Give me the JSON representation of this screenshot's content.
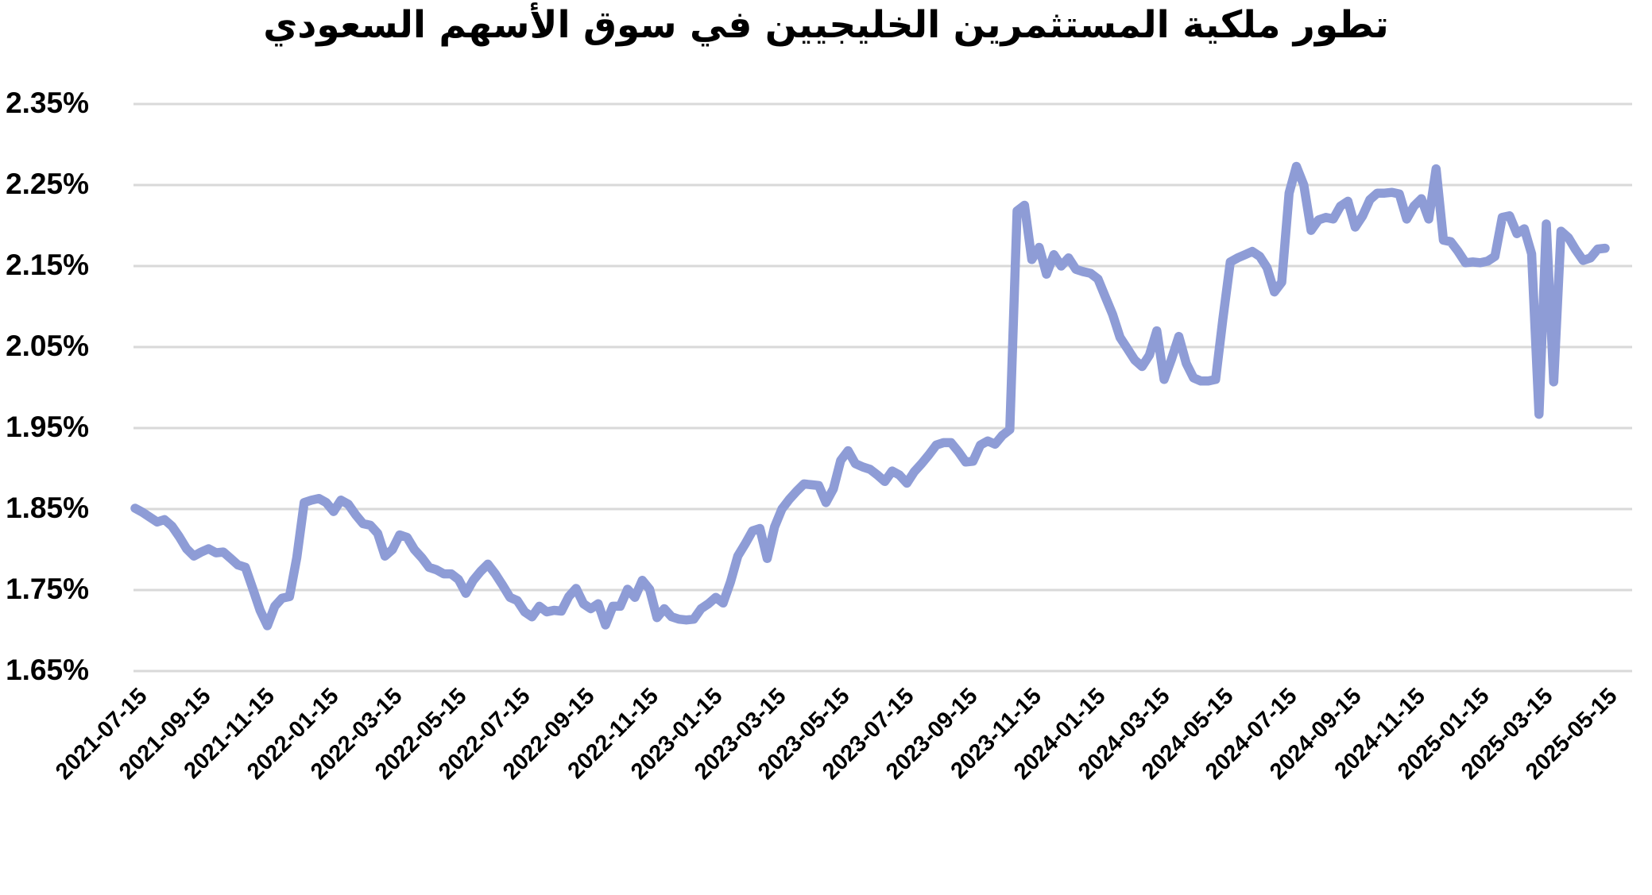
{
  "title": "تطور ملكية المستثمرين الخليجيين في سوق الأسهم السعودي",
  "chart_data": {
    "type": "line",
    "title": "تطور ملكية المستثمرين الخليجيين في سوق الأسهم السعودي",
    "xlabel": "",
    "ylabel": "",
    "x_start": "2021-07-15",
    "x_end": "2025-05-15",
    "x_interval": "weekly",
    "x_tick_labels": [
      "2021-07-15",
      "2021-09-15",
      "2021-11-15",
      "2022-01-15",
      "2022-03-15",
      "2022-05-15",
      "2022-07-15",
      "2022-09-15",
      "2022-11-15",
      "2023-01-15",
      "2023-03-15",
      "2023-05-15",
      "2023-07-15",
      "2023-09-15",
      "2023-11-15",
      "2024-01-15",
      "2024-03-15",
      "2024-05-15",
      "2024-07-15",
      "2024-09-15",
      "2024-11-15",
      "2025-01-15",
      "2025-03-15",
      "2025-05-15"
    ],
    "y_tick_labels": [
      "2.35%",
      "2.25%",
      "2.15%",
      "2.05%",
      "1.95%",
      "1.85%",
      "1.75%",
      "1.65%"
    ],
    "ylim": [
      1.65,
      2.35
    ],
    "y_unit": "%",
    "grid": true,
    "legend_position": "none",
    "line_color": "#8E9CD6",
    "gridline_color": "#D9D9D9",
    "text_color": "#000000",
    "values": [
      1.851,
      1.846,
      1.84,
      1.834,
      1.837,
      1.829,
      1.816,
      1.801,
      1.792,
      1.797,
      1.801,
      1.796,
      1.797,
      1.789,
      1.781,
      1.778,
      1.752,
      1.725,
      1.706,
      1.73,
      1.74,
      1.742,
      1.79,
      1.858,
      1.861,
      1.863,
      1.858,
      1.847,
      1.861,
      1.856,
      1.843,
      1.832,
      1.83,
      1.82,
      1.792,
      1.8,
      1.818,
      1.815,
      1.8,
      1.79,
      1.778,
      1.775,
      1.77,
      1.77,
      1.763,
      1.746,
      1.762,
      1.773,
      1.782,
      1.77,
      1.756,
      1.741,
      1.737,
      1.723,
      1.717,
      1.73,
      1.723,
      1.725,
      1.724,
      1.742,
      1.752,
      1.733,
      1.727,
      1.733,
      1.707,
      1.73,
      1.73,
      1.751,
      1.741,
      1.762,
      1.751,
      1.716,
      1.727,
      1.717,
      1.714,
      1.713,
      1.714,
      1.727,
      1.733,
      1.741,
      1.734,
      1.76,
      1.792,
      1.807,
      1.823,
      1.826,
      1.789,
      1.828,
      1.85,
      1.862,
      1.872,
      1.881,
      1.88,
      1.879,
      1.858,
      1.875,
      1.91,
      1.922,
      1.906,
      1.902,
      1.899,
      1.892,
      1.884,
      1.897,
      1.892,
      1.882,
      1.896,
      1.906,
      1.917,
      1.929,
      1.932,
      1.932,
      1.921,
      1.908,
      1.909,
      1.929,
      1.934,
      1.93,
      1.941,
      1.948,
      2.218,
      2.225,
      2.158,
      2.173,
      2.14,
      2.164,
      2.15,
      2.16,
      2.146,
      2.143,
      2.141,
      2.134,
      2.112,
      2.09,
      2.062,
      2.048,
      2.034,
      2.026,
      2.04,
      2.07,
      2.01,
      2.035,
      2.063,
      2.03,
      2.012,
      2.008,
      2.008,
      2.01,
      2.085,
      2.155,
      2.16,
      2.164,
      2.168,
      2.162,
      2.148,
      2.118,
      2.13,
      2.24,
      2.273,
      2.25,
      2.194,
      2.207,
      2.21,
      2.208,
      2.224,
      2.23,
      2.198,
      2.212,
      2.232,
      2.24,
      2.24,
      2.241,
      2.239,
      2.208,
      2.224,
      2.233,
      2.208,
      2.27,
      2.182,
      2.18,
      2.168,
      2.154,
      2.155,
      2.154,
      2.156,
      2.162,
      2.21,
      2.212,
      2.19,
      2.196,
      2.165,
      1.967,
      2.202,
      2.007,
      2.193,
      2.185,
      2.17,
      2.157,
      2.16,
      2.171,
      2.172
    ]
  }
}
